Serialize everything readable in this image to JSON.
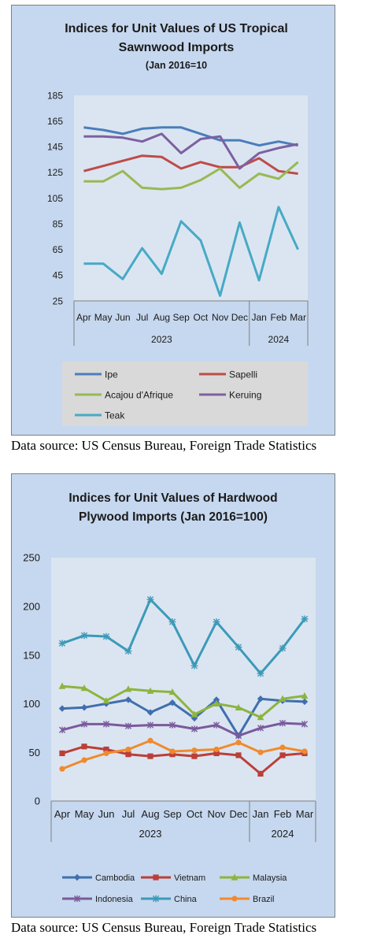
{
  "chart_data": [
    {
      "type": "line",
      "title": "Indices for Unit Values of US Tropical Sawnwood Imports",
      "subtitle": "(Jan 2016=10",
      "categories": [
        "Apr",
        "May",
        "Jun",
        "Jul",
        "Aug",
        "Sep",
        "Oct",
        "Nov",
        "Dec",
        "Jan",
        "Feb",
        "Mar"
      ],
      "year_groups": [
        {
          "label": "2023",
          "start": 0,
          "end": 8
        },
        {
          "label": "2024",
          "start": 9,
          "end": 11
        }
      ],
      "ylim": [
        25,
        185
      ],
      "yticks": [
        25,
        45,
        65,
        85,
        105,
        125,
        145,
        165,
        185
      ],
      "grid": false,
      "legend_position": "bottom",
      "series": [
        {
          "name": "Ipe",
          "color": "#4a7ebb",
          "values": [
            160,
            158,
            155,
            159,
            160,
            160,
            155,
            150,
            150,
            146,
            149,
            146
          ]
        },
        {
          "name": "Sapelli",
          "color": "#be4b48",
          "values": [
            126,
            130,
            134,
            138,
            137,
            128,
            133,
            129,
            129,
            136,
            126,
            124
          ]
        },
        {
          "name": "Acajou d'Afrique",
          "color": "#98b954",
          "values": [
            118,
            118,
            126,
            113,
            112,
            113,
            119,
            128,
            113,
            124,
            120,
            133
          ]
        },
        {
          "name": "Keruing",
          "color": "#7d60a0",
          "values": [
            153,
            153,
            152,
            149,
            155,
            140,
            151,
            153,
            128,
            140,
            144,
            147
          ]
        },
        {
          "name": "Teak",
          "color": "#46aac5",
          "values": [
            54,
            54,
            42,
            66,
            46,
            87,
            72,
            29,
            86,
            41,
            98,
            65
          ]
        }
      ]
    },
    {
      "type": "line",
      "title": "Indices for Unit Values of Hardwood Plywood Imports (Jan 2016=100)",
      "categories": [
        "Apr",
        "May",
        "Jun",
        "Jul",
        "Aug",
        "Sep",
        "Oct",
        "Nov",
        "Dec",
        "Jan",
        "Feb",
        "Mar"
      ],
      "year_groups": [
        {
          "label": "2023",
          "start": 0,
          "end": 8
        },
        {
          "label": "2024",
          "start": 9,
          "end": 11
        }
      ],
      "ylim": [
        0,
        250
      ],
      "yticks": [
        0,
        50,
        100,
        150,
        200,
        250
      ],
      "grid": false,
      "legend_position": "bottom",
      "series": [
        {
          "name": "Cambodia",
          "color": "#3f6fae",
          "marker": "diamond",
          "values": [
            95,
            96,
            100,
            104,
            91,
            101,
            85,
            104,
            67,
            105,
            103,
            102
          ]
        },
        {
          "name": "Vietnam",
          "color": "#bb3f38",
          "marker": "square",
          "values": [
            49,
            56,
            53,
            48,
            46,
            48,
            46,
            49,
            47,
            28,
            47,
            49
          ]
        },
        {
          "name": "Malaysia",
          "color": "#8db43e",
          "marker": "triangle",
          "values": [
            118,
            116,
            103,
            115,
            113,
            112,
            89,
            100,
            96,
            86,
            105,
            108
          ]
        },
        {
          "name": "Indonesia",
          "color": "#7a5a9c",
          "marker": "cross",
          "values": [
            73,
            79,
            79,
            77,
            78,
            78,
            74,
            78,
            67,
            75,
            80,
            79
          ]
        },
        {
          "name": "China",
          "color": "#3b9ab8",
          "marker": "star",
          "values": [
            162,
            170,
            169,
            154,
            207,
            184,
            139,
            184,
            158,
            131,
            157,
            187
          ]
        },
        {
          "name": "Brazil",
          "color": "#f08a2e",
          "marker": "circle",
          "values": [
            33,
            42,
            49,
            53,
            62,
            51,
            52,
            53,
            60,
            50,
            55,
            51
          ]
        }
      ]
    }
  ],
  "sources": [
    "Data source: US Census Bureau, Foreign Trade Statistics",
    "Data source: US Census Bureau, Foreign Trade Statistics"
  ]
}
